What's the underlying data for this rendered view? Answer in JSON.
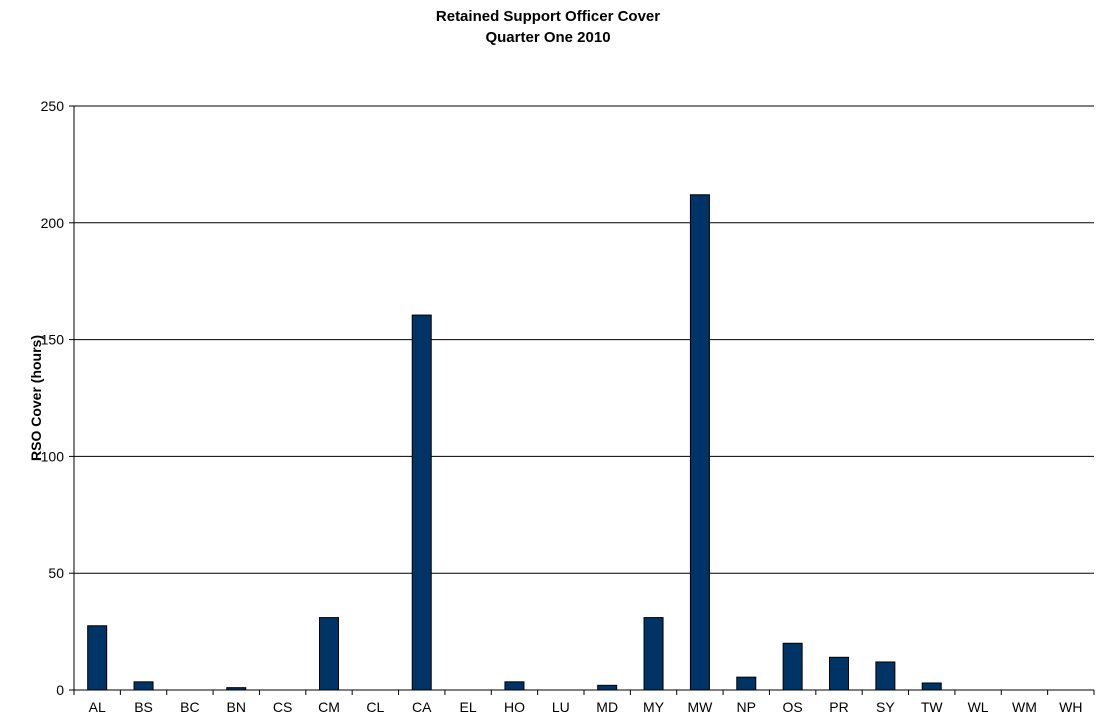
{
  "chart_data": {
    "type": "bar",
    "title": "Retained Support Officer Cover",
    "subtitle": "Quarter One 2010",
    "xlabel": "",
    "ylabel": "RSO Cover (hours)",
    "ylim": [
      0,
      250
    ],
    "yticks": [
      0,
      50,
      100,
      150,
      200,
      250
    ],
    "grid": true,
    "categories": [
      "AL",
      "BS",
      "BC",
      "BN",
      "CS",
      "CM",
      "CL",
      "CA",
      "EL",
      "HO",
      "LU",
      "MD",
      "MY",
      "MW",
      "NP",
      "OS",
      "PR",
      "SY",
      "TW",
      "WL",
      "WM",
      "WH"
    ],
    "values": [
      27.5,
      3.5,
      0,
      1,
      0,
      31,
      0,
      160.5,
      0,
      3.5,
      0,
      2,
      31,
      212,
      5.5,
      20,
      14,
      12,
      3,
      0,
      0,
      0
    ],
    "colors": {
      "bar": "#003366",
      "bar_stroke": "#000000",
      "grid": "#000000"
    }
  }
}
